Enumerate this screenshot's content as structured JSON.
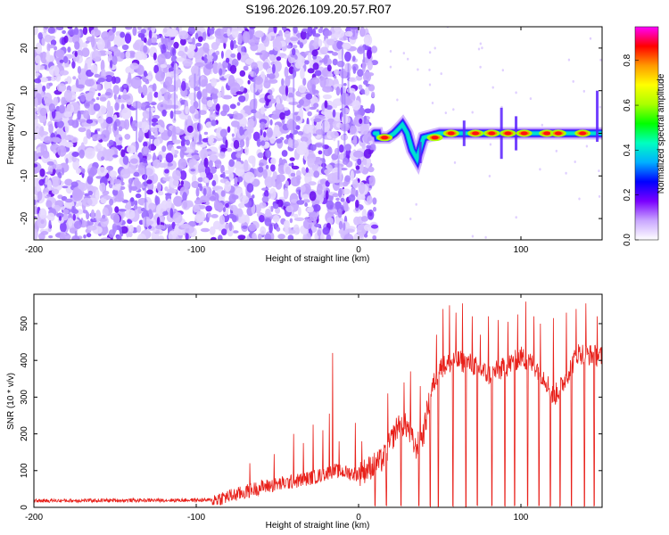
{
  "title": "S196.2026.109.20.57.R07",
  "chart_data": [
    {
      "type": "heatmap",
      "title": "S196.2026.109.20.57.R07",
      "xlabel": "Height of straight line (km)",
      "ylabel": "Frequency (Hz)",
      "xlim": [
        -200,
        150
      ],
      "ylim": [
        -25,
        25
      ],
      "xticks": [
        -200,
        -100,
        0,
        100
      ],
      "xtick_labels": [
        "-200",
        "-100",
        "0",
        "100"
      ],
      "yticks": [
        -20,
        -10,
        0,
        10,
        20
      ],
      "ytick_labels": [
        "-20",
        "-10",
        "0",
        "10",
        "20"
      ],
      "noise_region_x": [
        -200,
        10
      ],
      "signal_start_x": 10,
      "ridge": [
        {
          "x": 12,
          "f": -1
        },
        {
          "x": 18,
          "f": -1
        },
        {
          "x": 22,
          "f": 0
        },
        {
          "x": 27,
          "f": 2
        },
        {
          "x": 30,
          "f": 0
        },
        {
          "x": 33,
          "f": -4
        },
        {
          "x": 36,
          "f": -6
        },
        {
          "x": 40,
          "f": -1
        },
        {
          "x": 50,
          "f": 0
        },
        {
          "x": 70,
          "f": 0
        },
        {
          "x": 90,
          "f": 0
        },
        {
          "x": 110,
          "f": 0
        },
        {
          "x": 130,
          "f": 0
        },
        {
          "x": 150,
          "f": 0
        }
      ],
      "hotspots": [
        {
          "x": 16,
          "f": -1
        },
        {
          "x": 47,
          "f": -1
        },
        {
          "x": 57,
          "f": 0
        },
        {
          "x": 72,
          "f": 0
        },
        {
          "x": 82,
          "f": 0
        },
        {
          "x": 92,
          "f": 0
        },
        {
          "x": 102,
          "f": 0
        },
        {
          "x": 116,
          "f": 0
        },
        {
          "x": 123,
          "f": 0
        },
        {
          "x": 138,
          "f": 0
        }
      ],
      "colorbar": {
        "label": "Normalized spectral amplitude",
        "range": [
          0,
          0.95
        ],
        "ticks": [
          0.0,
          0.2,
          0.4,
          0.6,
          0.8
        ],
        "tick_labels": [
          "0.0",
          "0.2",
          "0.4",
          "0.6",
          "0.8"
        ],
        "colors": [
          "#ffffff",
          "#c9a6ff",
          "#7a00ff",
          "#0000ff",
          "#00b0ff",
          "#00ffc0",
          "#00ff00",
          "#aaff00",
          "#ffff00",
          "#ff9900",
          "#ff0000",
          "#ff00ff"
        ]
      }
    },
    {
      "type": "line",
      "xlabel": "Height of straight line (km)",
      "ylabel": "SNR (10 * v/v)",
      "xlim": [
        -200,
        150
      ],
      "ylim": [
        0,
        580
      ],
      "xticks": [
        -200,
        -100,
        0,
        100
      ],
      "xtick_labels": [
        "-200",
        "-100",
        "0",
        "100"
      ],
      "yticks": [
        0,
        100,
        200,
        300,
        400,
        500
      ],
      "ytick_labels": [
        "0",
        "100",
        "200",
        "300",
        "400",
        "500"
      ],
      "series": [
        {
          "name": "SNR",
          "color": "#e8201a"
        }
      ],
      "envelope": [
        {
          "x": -200,
          "y": 18
        },
        {
          "x": -90,
          "y": 20
        },
        {
          "x": -75,
          "y": 35
        },
        {
          "x": -60,
          "y": 55
        },
        {
          "x": -40,
          "y": 70
        },
        {
          "x": -25,
          "y": 85
        },
        {
          "x": -15,
          "y": 100
        },
        {
          "x": 0,
          "y": 90
        },
        {
          "x": 15,
          "y": 130
        },
        {
          "x": 25,
          "y": 230
        },
        {
          "x": 30,
          "y": 220
        },
        {
          "x": 35,
          "y": 160
        },
        {
          "x": 40,
          "y": 200
        },
        {
          "x": 45,
          "y": 320
        },
        {
          "x": 50,
          "y": 380
        },
        {
          "x": 60,
          "y": 400
        },
        {
          "x": 70,
          "y": 390
        },
        {
          "x": 80,
          "y": 360
        },
        {
          "x": 90,
          "y": 380
        },
        {
          "x": 100,
          "y": 410
        },
        {
          "x": 110,
          "y": 380
        },
        {
          "x": 115,
          "y": 350
        },
        {
          "x": 120,
          "y": 300
        },
        {
          "x": 125,
          "y": 330
        },
        {
          "x": 135,
          "y": 420
        },
        {
          "x": 150,
          "y": 410
        }
      ],
      "spikes": [
        {
          "x": -67,
          "y": 120
        },
        {
          "x": -52,
          "y": 145
        },
        {
          "x": -40,
          "y": 200
        },
        {
          "x": -34,
          "y": 175
        },
        {
          "x": -28,
          "y": 225
        },
        {
          "x": -22,
          "y": 210
        },
        {
          "x": -18,
          "y": 255
        },
        {
          "x": -12,
          "y": 180
        },
        {
          "x": -2,
          "y": 230
        },
        {
          "x": 2,
          "y": 180
        },
        {
          "x": 18,
          "y": 310
        },
        {
          "x": 28,
          "y": 340
        },
        {
          "x": 32,
          "y": 370
        },
        {
          "x": 38,
          "y": 330
        },
        {
          "x": 42,
          "y": 290
        },
        {
          "x": 48,
          "y": 470
        },
        {
          "x": 52,
          "y": 540
        },
        {
          "x": 56,
          "y": 550
        },
        {
          "x": 60,
          "y": 530
        },
        {
          "x": 64,
          "y": 555
        },
        {
          "x": 70,
          "y": 520
        },
        {
          "x": 75,
          "y": 470
        },
        {
          "x": 80,
          "y": 520
        },
        {
          "x": 86,
          "y": 510
        },
        {
          "x": 92,
          "y": 505
        },
        {
          "x": 98,
          "y": 525
        },
        {
          "x": 103,
          "y": 560
        },
        {
          "x": 108,
          "y": 520
        },
        {
          "x": 112,
          "y": 500
        },
        {
          "x": 120,
          "y": 515
        },
        {
          "x": 128,
          "y": 530
        },
        {
          "x": 134,
          "y": 540
        },
        {
          "x": 140,
          "y": 555
        },
        {
          "x": 147,
          "y": 520
        },
        {
          "x": -16,
          "y": 420
        }
      ],
      "dropouts_x": [
        10,
        17,
        26,
        37,
        44,
        49,
        58,
        66,
        73,
        82,
        90,
        96,
        104,
        111,
        118,
        124,
        131,
        139,
        145
      ]
    }
  ]
}
